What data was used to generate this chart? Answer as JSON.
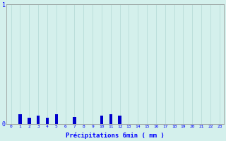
{
  "xlabel": "Précipitations 6min ( mm )",
  "ylabel": "",
  "background_color": "#d4f0ec",
  "plot_bg_color": "#d4f0ec",
  "bar_color": "#0000cc",
  "ylim": [
    0,
    1.0
  ],
  "xlim": [
    -0.5,
    23.5
  ],
  "yticks": [
    0,
    1
  ],
  "xticks": [
    0,
    1,
    2,
    3,
    4,
    5,
    6,
    7,
    8,
    9,
    10,
    11,
    12,
    13,
    14,
    15,
    16,
    17,
    18,
    19,
    20,
    21,
    22,
    23
  ],
  "grid_color": "#b8dcd8",
  "values": [
    0,
    0.08,
    0.05,
    0.07,
    0.05,
    0.08,
    0,
    0.06,
    0,
    0,
    0.07,
    0.08,
    0.07,
    0,
    0,
    0,
    0,
    0,
    0,
    0,
    0,
    0,
    0,
    0
  ],
  "bar_width": 0.35
}
